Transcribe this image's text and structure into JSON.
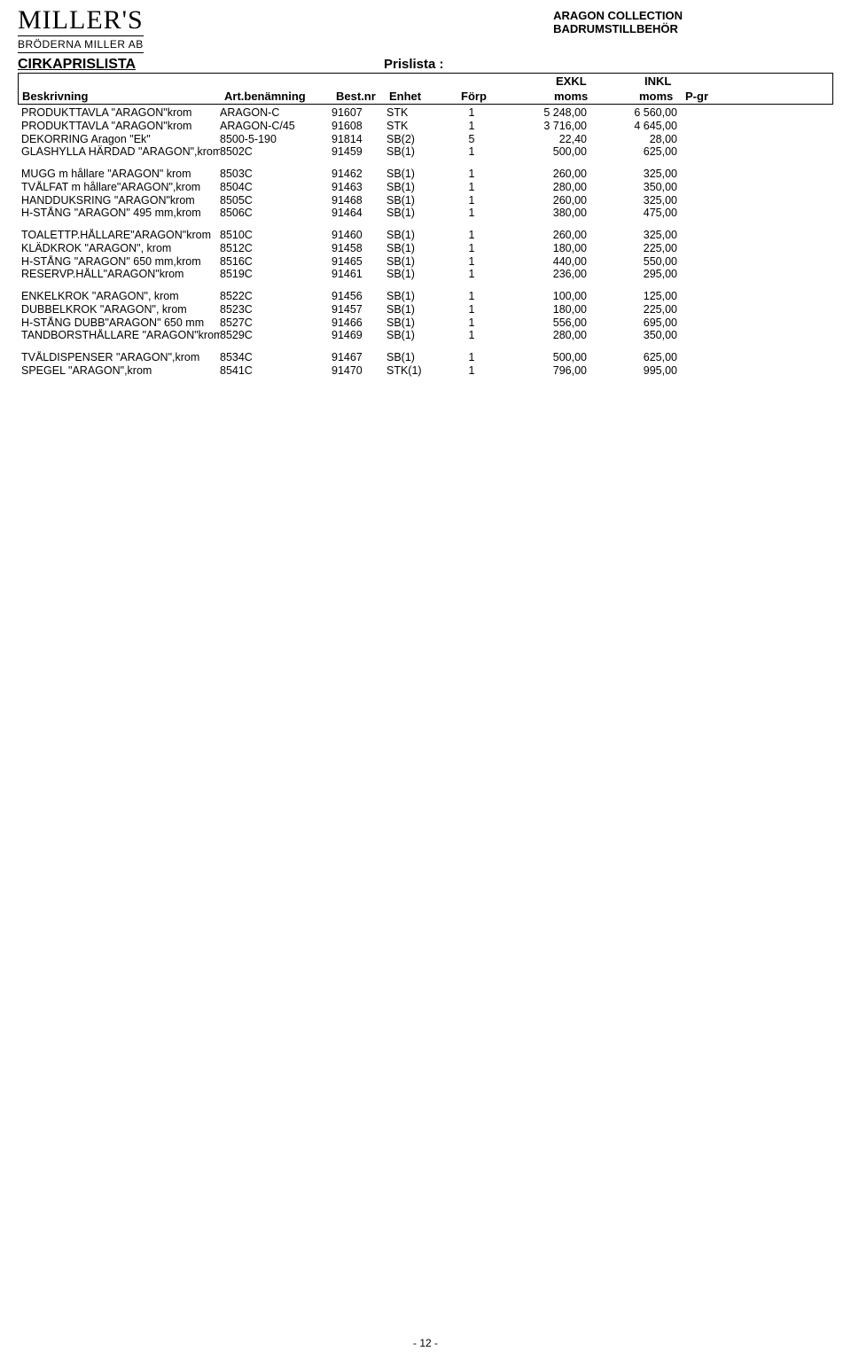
{
  "logo": {
    "main": "MILLER'S",
    "sub": "BRÖDERNA MILLER AB"
  },
  "collection": {
    "line1": "ARAGON COLLECTION",
    "line2": "BADRUMSTILLBEHÖR"
  },
  "titles": {
    "left": "CIRKAPRISLISTA",
    "right": "Prislista :"
  },
  "headers": {
    "besk": "Beskrivning",
    "art": "Art.benämning",
    "best": "Best.nr",
    "enhet": "Enhet",
    "forp": "Förp",
    "exkl_top": "EXKL",
    "exkl_bot": "moms",
    "inkl_top": "INKL",
    "inkl_bot": "moms",
    "pgr": "P-gr"
  },
  "page_number": "-  12  -",
  "groups": [
    [
      {
        "besk": "PRODUKTTAVLA \"ARAGON\"krom",
        "art": "ARAGON-C",
        "best": "91607",
        "enhet": "STK",
        "forp": "1",
        "exkl": "5 248,00",
        "inkl": "6 560,00"
      },
      {
        "besk": "PRODUKTTAVLA \"ARAGON\"krom",
        "art": "ARAGON-C/45",
        "best": "91608",
        "enhet": "STK",
        "forp": "1",
        "exkl": "3 716,00",
        "inkl": "4 645,00"
      },
      {
        "besk": "DEKORRING Aragon \"Ek\"",
        "art": "8500-5-190",
        "best": "91814",
        "enhet": "SB(2)",
        "forp": "5",
        "exkl": "22,40",
        "inkl": "28,00"
      },
      {
        "besk": "GLASHYLLA HÄRDAD \"ARAGON\",krom",
        "art": "8502C",
        "best": "91459",
        "enhet": "SB(1)",
        "forp": "1",
        "exkl": "500,00",
        "inkl": "625,00"
      }
    ],
    [
      {
        "besk": "MUGG m hållare \"ARAGON\" krom",
        "art": "8503C",
        "best": "91462",
        "enhet": "SB(1)",
        "forp": "1",
        "exkl": "260,00",
        "inkl": "325,00"
      },
      {
        "besk": "TVÅLFAT m hållare\"ARAGON\",krom",
        "art": "8504C",
        "best": "91463",
        "enhet": "SB(1)",
        "forp": "1",
        "exkl": "280,00",
        "inkl": "350,00"
      },
      {
        "besk": "HANDDUKSRING \"ARAGON\"krom",
        "art": "8505C",
        "best": "91468",
        "enhet": "SB(1)",
        "forp": "1",
        "exkl": "260,00",
        "inkl": "325,00"
      },
      {
        "besk": "H-STÅNG \"ARAGON\" 495 mm,krom",
        "art": "8506C",
        "best": "91464",
        "enhet": "SB(1)",
        "forp": "1",
        "exkl": "380,00",
        "inkl": "475,00"
      }
    ],
    [
      {
        "besk": "TOALETTP.HÅLLARE\"ARAGON\"krom",
        "art": "8510C",
        "best": "91460",
        "enhet": "SB(1)",
        "forp": "1",
        "exkl": "260,00",
        "inkl": "325,00"
      },
      {
        "besk": "KLÄDKROK \"ARAGON\", krom",
        "art": "8512C",
        "best": "91458",
        "enhet": "SB(1)",
        "forp": "1",
        "exkl": "180,00",
        "inkl": "225,00"
      },
      {
        "besk": "H-STÅNG \"ARAGON\" 650 mm,krom",
        "art": "8516C",
        "best": "91465",
        "enhet": "SB(1)",
        "forp": "1",
        "exkl": "440,00",
        "inkl": "550,00"
      },
      {
        "besk": "RESERVP.HÅLL\"ARAGON\"krom",
        "art": "8519C",
        "best": "91461",
        "enhet": "SB(1)",
        "forp": "1",
        "exkl": "236,00",
        "inkl": "295,00"
      }
    ],
    [
      {
        "besk": "ENKELKROK \"ARAGON\", krom",
        "art": "8522C",
        "best": "91456",
        "enhet": "SB(1)",
        "forp": "1",
        "exkl": "100,00",
        "inkl": "125,00"
      },
      {
        "besk": "DUBBELKROK \"ARAGON\", krom",
        "art": "8523C",
        "best": "91457",
        "enhet": "SB(1)",
        "forp": "1",
        "exkl": "180,00",
        "inkl": "225,00"
      },
      {
        "besk": "H-STÅNG DUBB\"ARAGON\" 650 mm",
        "art": "8527C",
        "best": "91466",
        "enhet": "SB(1)",
        "forp": "1",
        "exkl": "556,00",
        "inkl": "695,00"
      },
      {
        "besk": "TANDBORSTHÅLLARE \"ARAGON\"krom",
        "art": "8529C",
        "best": "91469",
        "enhet": "SB(1)",
        "forp": "1",
        "exkl": "280,00",
        "inkl": "350,00"
      }
    ],
    [
      {
        "besk": "TVÅLDISPENSER \"ARAGON\",krom",
        "art": "8534C",
        "best": "91467",
        "enhet": "SB(1)",
        "forp": "1",
        "exkl": "500,00",
        "inkl": "625,00"
      },
      {
        "besk": "SPEGEL \"ARAGON\",krom",
        "art": "8541C",
        "best": "91470",
        "enhet": "STK(1)",
        "forp": "1",
        "exkl": "796,00",
        "inkl": "995,00"
      }
    ]
  ]
}
